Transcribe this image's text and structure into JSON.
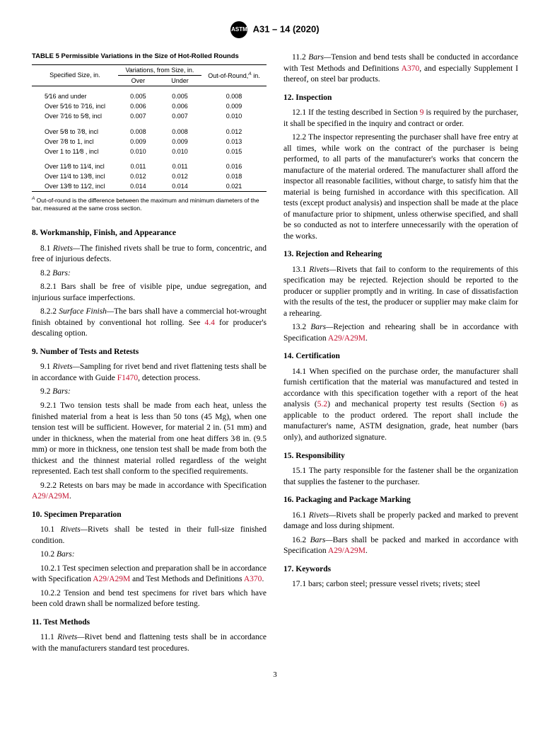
{
  "header": {
    "logo_text": "ASTM",
    "title": "A31 – 14 (2020)"
  },
  "table": {
    "title": "TABLE 5 Permissible Variations in the Size of Hot-Rolled Rounds",
    "headers": {
      "size": "Specified Size, in.",
      "variations": "Variations, from Size, in.",
      "over": "Over",
      "under": "Under",
      "out": "Out-of-Round,",
      "out_sup": "A",
      "out_unit": " in."
    },
    "rows": [
      {
        "size": "5⁄16 and under",
        "over": "0.005",
        "under": "0.005",
        "out": "0.008"
      },
      {
        "size": "Over 5⁄16 to 7⁄16, incl",
        "over": "0.006",
        "under": "0.006",
        "out": "0.009"
      },
      {
        "size": "Over 7⁄16 to 5⁄8, incl",
        "over": "0.007",
        "under": "0.007",
        "out": "0.010"
      },
      {
        "size": "Over 5⁄8 to 7⁄8, incl",
        "over": "0.008",
        "under": "0.008",
        "out": "0.012"
      },
      {
        "size": "Over 7⁄8 to 1, incl",
        "over": "0.009",
        "under": "0.009",
        "out": "0.013"
      },
      {
        "size": "Over 1 to 11⁄8 , incl",
        "over": "0.010",
        "under": "0.010",
        "out": "0.015"
      },
      {
        "size": "Over 11⁄8 to 11⁄4, incl",
        "over": "0.011",
        "under": "0.011",
        "out": "0.016"
      },
      {
        "size": "Over 11⁄4 to 13⁄8, incl",
        "over": "0.012",
        "under": "0.012",
        "out": "0.018"
      },
      {
        "size": "Over 13⁄8 to 11⁄2, incl",
        "over": "0.014",
        "under": "0.014",
        "out": "0.021"
      }
    ],
    "footnote_sup": "A",
    "footnote": " Out-of-round is the difference between the maximum and minimum diameters of the bar, measured at the same cross section."
  },
  "left_sections": {
    "s8_title": "8.  Workmanship, Finish, and Appearance",
    "s8_1_lead": "8.1 ",
    "s8_1_it": "Rivets—",
    "s8_1_txt": "The finished rivets shall be true to form, concentric, and free of injurious defects.",
    "s8_2_lead": "8.2 ",
    "s8_2_it": "Bars:",
    "s8_2_1": "8.2.1 Bars shall be free of visible pipe, undue segregation, and injurious surface imperfections.",
    "s8_2_2_lead": "8.2.2 ",
    "s8_2_2_it": "Surface Finish—",
    "s8_2_2_txt": "The bars shall have a commercial hot-wrought finish obtained by conventional hot rolling. See ",
    "s8_2_2_ref": "4.4",
    "s8_2_2_end": " for producer's descaling option.",
    "s9_title": "9.  Number of Tests and Retests",
    "s9_1_lead": "9.1 ",
    "s9_1_it": "Rivets—",
    "s9_1_txt": "Sampling for rivet bend and rivet flattening tests shall be in accordance with Guide ",
    "s9_1_ref": "F1470",
    "s9_1_end": ", detection process.",
    "s9_2_lead": "9.2 ",
    "s9_2_it": "Bars:",
    "s9_2_1": "9.2.1 Two tension tests shall be made from each heat, unless the finished material from a heat is less than 50 tons (45 Mg), when one tension test will be sufficient. However, for material 2 in. (51 mm) and under in thickness, when the material from one heat differs 3⁄8 in. (9.5 mm) or more in thickness, one tension test shall be made from both the thickest and the thinnest material rolled regardless of the weight represented. Each test shall conform to the specified requirements.",
    "s9_2_2_txt": "9.2.2 Retests on bars may be made in accordance with Specification ",
    "s9_2_2_ref": "A29/A29M",
    "s9_2_2_end": ".",
    "s10_title": "10.  Specimen Preparation",
    "s10_1_lead": "10.1 ",
    "s10_1_it": "Rivets—",
    "s10_1_txt": "Rivets shall be tested in their full-size finished condition.",
    "s10_2_lead": "10.2 ",
    "s10_2_it": "Bars:",
    "s10_2_1_txt": "10.2.1 Test specimen selection and preparation shall be in accordance with Specification ",
    "s10_2_1_ref1": "A29/A29M",
    "s10_2_1_mid": " and Test Methods and Definitions ",
    "s10_2_1_ref2": "A370",
    "s10_2_1_end": ".",
    "s10_2_2": "10.2.2 Tension and bend test specimens for rivet bars which have been cold drawn shall be normalized before testing.",
    "s11_title": "11.  Test Methods",
    "s11_1_lead": "11.1 ",
    "s11_1_it": "Rivets—",
    "s11_1_txt": "Rivet bend and flattening tests shall be in accordance with the manufacturers standard test procedures."
  },
  "right_sections": {
    "s11_2_lead": "11.2 ",
    "s11_2_it": "Bars—",
    "s11_2_txt": "Tension and bend tests shall be conducted in accordance with Test Methods and Definitions ",
    "s11_2_ref": "A370",
    "s11_2_end": ", and especially Supplement I thereof, on steel bar products.",
    "s12_title": "12.  Inspection",
    "s12_1_txt": "12.1 If the testing described in Section ",
    "s12_1_ref": "9",
    "s12_1_end": " is required by the purchaser, it shall be specified in the inquiry and contract or order.",
    "s12_2": "12.2 The inspector representing the purchaser shall have free entry at all times, while work on the contract of the purchaser is being performed, to all parts of the manufacturer's works that concern the manufacture of the material ordered. The manufacturer shall afford the inspector all reasonable facilities, without charge, to satisfy him that the material is being furnished in accordance with this specification. All tests (except product analysis) and inspection shall be made at the place of manufacture prior to shipment, unless otherwise specified, and shall be so conducted as not to interfere unnecessarily with the operation of the works.",
    "s13_title": "13.  Rejection and Rehearing",
    "s13_1_lead": "13.1 ",
    "s13_1_it": "Rivets—",
    "s13_1_txt": "Rivets that fail to conform to the requirements of this specification may be rejected. Rejection should be reported to the producer or supplier promptly and in writing. In case of dissatisfaction with the results of the test, the producer or supplier may make claim for a rehearing.",
    "s13_2_lead": "13.2 ",
    "s13_2_it": "Bars—",
    "s13_2_txt": "Rejection and rehearing shall be in accordance with Specification ",
    "s13_2_ref": "A29/A29M",
    "s13_2_end": ".",
    "s14_title": "14.  Certification",
    "s14_1_txt": "14.1 When specified on the purchase order, the manufacturer shall furnish certification that the material was manufactured and tested in accordance with this specification together with a report of the heat analysis (",
    "s14_1_ref1": "5.2",
    "s14_1_mid": ") and mechanical property test results (Section ",
    "s14_1_ref2": "6",
    "s14_1_end": ") as applicable to the product ordered. The report shall include the manufacturer's name, ASTM designation, grade, heat number (bars only), and authorized signature.",
    "s15_title": "15.  Responsibility",
    "s15_1": "15.1 The party responsible for the fastener shall be the organization that supplies the fastener to the purchaser.",
    "s16_title": "16.  Packaging and Package Marking",
    "s16_1_lead": "16.1 ",
    "s16_1_it": "Rivets—",
    "s16_1_txt": "Rivets shall be properly packed and marked to prevent damage and loss during shipment.",
    "s16_2_lead": "16.2 ",
    "s16_2_it": "Bars—",
    "s16_2_txt": "Bars shall be packed and marked in accordance with Specification ",
    "s16_2_ref": "A29/A29M",
    "s16_2_end": ".",
    "s17_title": "17.  Keywords",
    "s17_1": "17.1 bars; carbon steel; pressure vessel rivets; rivets; steel"
  },
  "page_number": "3"
}
